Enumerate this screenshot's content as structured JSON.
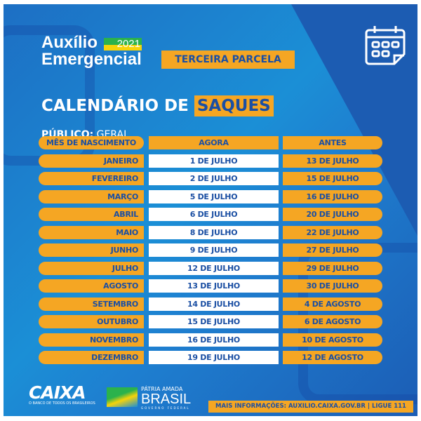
{
  "header": {
    "brand_line1": "Auxílio",
    "brand_line2": "Emergencial",
    "year": "2021",
    "parcela": "TERCEIRA PARCELA",
    "title_prefix": "CALENDÁRIO DE",
    "title_highlight": "SAQUES",
    "publico_label": "PÚBLICO:",
    "publico_value": "GERAL",
    "calendar_icon": "calendar-icon"
  },
  "table": {
    "headers": [
      "MÊS DE NASCIMENTO",
      "AGORA",
      "ANTES"
    ],
    "rows": [
      [
        "JANEIRO",
        "1 DE JULHO",
        "13 DE JULHO"
      ],
      [
        "FEVEREIRO",
        "2 DE JULHO",
        "15 DE JULHO"
      ],
      [
        "MARÇO",
        "5 DE JULHO",
        "16 DE JULHO"
      ],
      [
        "ABRIL",
        "6 DE JULHO",
        "20 DE JULHO"
      ],
      [
        "MAIO",
        "8 DE JULHO",
        "22 DE JULHO"
      ],
      [
        "JUNHO",
        "9 DE JULHO",
        "27 DE JULHO"
      ],
      [
        "JULHO",
        "12 DE JULHO",
        "29 DE JULHO"
      ],
      [
        "AGOSTO",
        "13 DE JULHO",
        "30 DE JULHO"
      ],
      [
        "SETEMBRO",
        "14 DE JULHO",
        "4 DE AGOSTO"
      ],
      [
        "OUTUBRO",
        "15 DE JULHO",
        "6 DE AGOSTO"
      ],
      [
        "NOVEMBRO",
        "16 DE JULHO",
        "10 DE AGOSTO"
      ],
      [
        "DEZEMBRO",
        "19 DE JULHO",
        "12 DE AGOSTO"
      ]
    ]
  },
  "footer": {
    "caixa": "CAIXA",
    "caixa_tagline": "O BANCO DE TODOS OS BRASILEIROS",
    "patria": "PÁTRIA AMADA",
    "brasil": "BRASIL",
    "governo": "GOVERNO FEDERAL",
    "info": "MAIS INFORMAÇÕES: AUXILIO.CAIXA.GOV.BR | LIGUE 111"
  },
  "colors": {
    "blue": "#1d6fc4",
    "orange": "#f5a623",
    "text_blue": "#1b4fa3"
  }
}
